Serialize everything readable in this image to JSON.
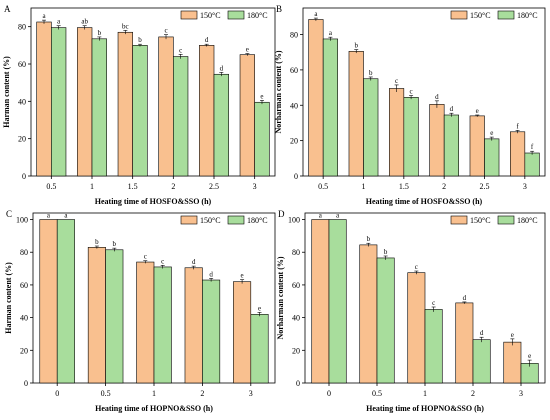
{
  "colors": {
    "s150": "#f9c08f",
    "s180": "#a8dd9c",
    "axis": "#000000"
  },
  "legend": {
    "s150": "150°C",
    "s180": "180°C"
  },
  "chart_data": [
    {
      "panel": "A",
      "type": "bar",
      "categories": [
        "0.5",
        "1",
        "1.5",
        "2",
        "2.5",
        "3"
      ],
      "xlabel": "Heating time of HOSFO&SSO (h)",
      "ylabel": "Harman content (%)",
      "ylim": [
        0,
        90
      ],
      "yticks": [
        0,
        20,
        40,
        60,
        80
      ],
      "legend_position": "top-right",
      "grid": false,
      "series": [
        {
          "name": "150°C",
          "values": [
            82.5,
            79.5,
            77.0,
            74.5,
            70.0,
            65.0
          ],
          "errors": [
            1.0,
            1.0,
            1.0,
            1.2,
            0.6,
            0.6
          ],
          "labels": [
            "a",
            "ab",
            "bc",
            "c",
            "d",
            "e"
          ]
        },
        {
          "name": "180°C",
          "values": [
            79.5,
            73.5,
            70.0,
            64.0,
            54.5,
            39.5
          ],
          "errors": [
            1.0,
            1.0,
            0.6,
            1.2,
            1.0,
            1.0
          ],
          "labels": [
            "a",
            "b",
            "b",
            "c",
            "d",
            "e"
          ]
        }
      ]
    },
    {
      "panel": "B",
      "type": "bar",
      "categories": [
        "0.5",
        "1",
        "1.5",
        "2",
        "2.5",
        "3"
      ],
      "xlabel": "Heating time of HOSFO&SSO (h)",
      "ylabel": "Norharman content (%)",
      "ylim": [
        0,
        95
      ],
      "yticks": [
        0,
        20,
        40,
        60,
        80
      ],
      "legend_position": "top-right",
      "grid": false,
      "series": [
        {
          "name": "150°C",
          "values": [
            88.5,
            70.5,
            49.5,
            40.5,
            34.0,
            25.0
          ],
          "errors": [
            0.8,
            1.0,
            2.0,
            2.0,
            0.5,
            0.8
          ],
          "labels": [
            "a",
            "b",
            "c",
            "d",
            "e",
            "f"
          ]
        },
        {
          "name": "180°C",
          "values": [
            77.5,
            55.0,
            44.5,
            34.5,
            21.0,
            13.0
          ],
          "errors": [
            1.0,
            1.0,
            1.0,
            1.0,
            1.0,
            1.0
          ],
          "labels": [
            "a",
            "b",
            "c",
            "d",
            "e",
            "f"
          ]
        }
      ]
    },
    {
      "panel": "C",
      "type": "bar",
      "categories": [
        "0",
        "0.5",
        "1",
        "2",
        "3"
      ],
      "xlabel": "Heating time of HOPNO&SSO (h)",
      "ylabel": "Harman content (%)",
      "ylim": [
        0,
        104
      ],
      "yticks": [
        0,
        20,
        40,
        60,
        80,
        100
      ],
      "legend_position": "top-right",
      "grid": false,
      "series": [
        {
          "name": "150°C",
          "values": [
            100,
            83.0,
            74.0,
            70.5,
            62.0
          ],
          "errors": [
            0,
            0.8,
            0.8,
            1.0,
            1.2
          ],
          "labels": [
            "a",
            "b",
            "c",
            "d",
            "e"
          ]
        },
        {
          "name": "180°C",
          "values": [
            100,
            81.5,
            71.0,
            63.0,
            42.0
          ],
          "errors": [
            0,
            1.0,
            1.0,
            1.0,
            1.2
          ],
          "labels": [
            "a",
            "b",
            "c",
            "d",
            "e"
          ]
        }
      ]
    },
    {
      "panel": "D",
      "type": "bar",
      "categories": [
        "0",
        "0.5",
        "1",
        "2",
        "3"
      ],
      "xlabel": "Heating time of HOPNO&SSO (h)",
      "ylabel": "Norharman content (%)",
      "ylim": [
        0,
        104
      ],
      "yticks": [
        0,
        20,
        40,
        60,
        80,
        100
      ],
      "legend_position": "top-right",
      "grid": false,
      "series": [
        {
          "name": "150°C",
          "values": [
            100,
            84.5,
            67.5,
            49.0,
            25.0
          ],
          "errors": [
            0,
            1.0,
            1.0,
            0.6,
            2.0
          ],
          "labels": [
            "a",
            "b",
            "c",
            "d",
            "e"
          ]
        },
        {
          "name": "180°C",
          "values": [
            100,
            76.5,
            45.0,
            26.5,
            12.0
          ],
          "errors": [
            0,
            1.2,
            1.5,
            1.5,
            2.0
          ],
          "labels": [
            "a",
            "b",
            "c",
            "d",
            "e"
          ]
        }
      ]
    }
  ]
}
